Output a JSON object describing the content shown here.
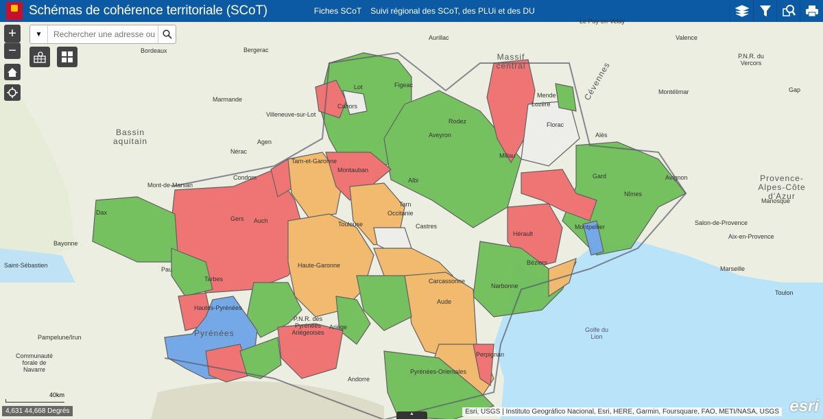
{
  "header": {
    "title": "Schémas de cohérence territoriale (SCoT)",
    "links": [
      "Fiches SCoT",
      "Suivi régional des SCoT, des PLUi et des DU"
    ],
    "tools": [
      "layers-icon",
      "filter-icon",
      "query-icon",
      "print-icon"
    ],
    "color": "#0b5aa3"
  },
  "search": {
    "placeholder": "Rechercher une adresse ou"
  },
  "zoom": {
    "in": "+",
    "out": "−"
  },
  "legend_colors": {
    "green": "#6fbf58",
    "red": "#ef6f6f",
    "orange": "#f2b868",
    "blue": "#6ea5e8"
  },
  "labels": {
    "bordeaux": "Bordeaux",
    "bergerac": "Bergerac",
    "aurillac": "Aurillac",
    "puy": "Le Puy-en-Velay",
    "valence": "Valence",
    "marmande": "Marmande",
    "villeneuve": "Villeneuve-sur-Lot",
    "cahors": "Cahors",
    "figeac": "Figeac",
    "lot": "Lot",
    "rodez": "Rodez",
    "aveyron": "Aveyron",
    "mende": "Mende",
    "lozere": "Lozère",
    "florac": "Florac",
    "massif": "Massif central",
    "cevennes": "Cévennes",
    "bassin": "Bassin aquitain",
    "agen": "Agen",
    "nerac": "Nérac",
    "tarnetgaronne": "Tarn-et-Garonne",
    "montauban": "Montauban",
    "millau": "Millau",
    "ales": "Alès",
    "gard": "Gard",
    "avignon": "Avignon",
    "montdemarsan": "Mont-de-Marsan",
    "condom": "Condom",
    "albi": "Albi",
    "tarn": "Tarn",
    "occitanie": "Occitanie",
    "castres": "Castres",
    "nimes": "Nîmes",
    "dax": "Dax",
    "gers": "Gers",
    "auch": "Auch",
    "toulouse": "Toulouse",
    "herault": "Hérault",
    "montpellier": "Montpellier",
    "bayonne": "Bayonne",
    "saintsebastien": "Saint-Sébastien",
    "hautegaronne": "Haute-Garonne",
    "beziers": "Béziers",
    "pau": "Pau",
    "tarbes": "Tarbes",
    "carcassonne": "Carcassonne",
    "narbonne": "Narbonne",
    "aude": "Aude",
    "hautespyrenees": "Hautes-Pyrénées",
    "ariege": "Ariège",
    "pnr": "P.N.R. des Pyrénées Ariégeoises",
    "pyrenees": "Pyrénées",
    "pamplune": "Pampelune/Irun",
    "navarre": "Communauté forale de Navarre",
    "perpignan": "Perpignan",
    "pyreneesorientales": "Pyrénées-Orientales",
    "andorre": "Andorre",
    "golfe": "Golfe du Lion",
    "provence": "Provence-Alpes-Côte d'Azur",
    "aix": "Aix-en-Provence",
    "marseille": "Marseille",
    "toulon": "Toulon",
    "salon": "Salon-de-Provence",
    "manosque": "Manosque",
    "gap": "Gap",
    "montelimar": "Montélimar",
    "pnrvercors": "P.N.R. du Vercors"
  },
  "scale": "40km",
  "coordinates": "4,631 44,668 Degrés",
  "attribution": "Esri, USGS | Instituto Geográfico Nacional, Esri, HERE, Garmin, Foursquare, FAO, METI/NASA, USGS",
  "esri": "esri"
}
